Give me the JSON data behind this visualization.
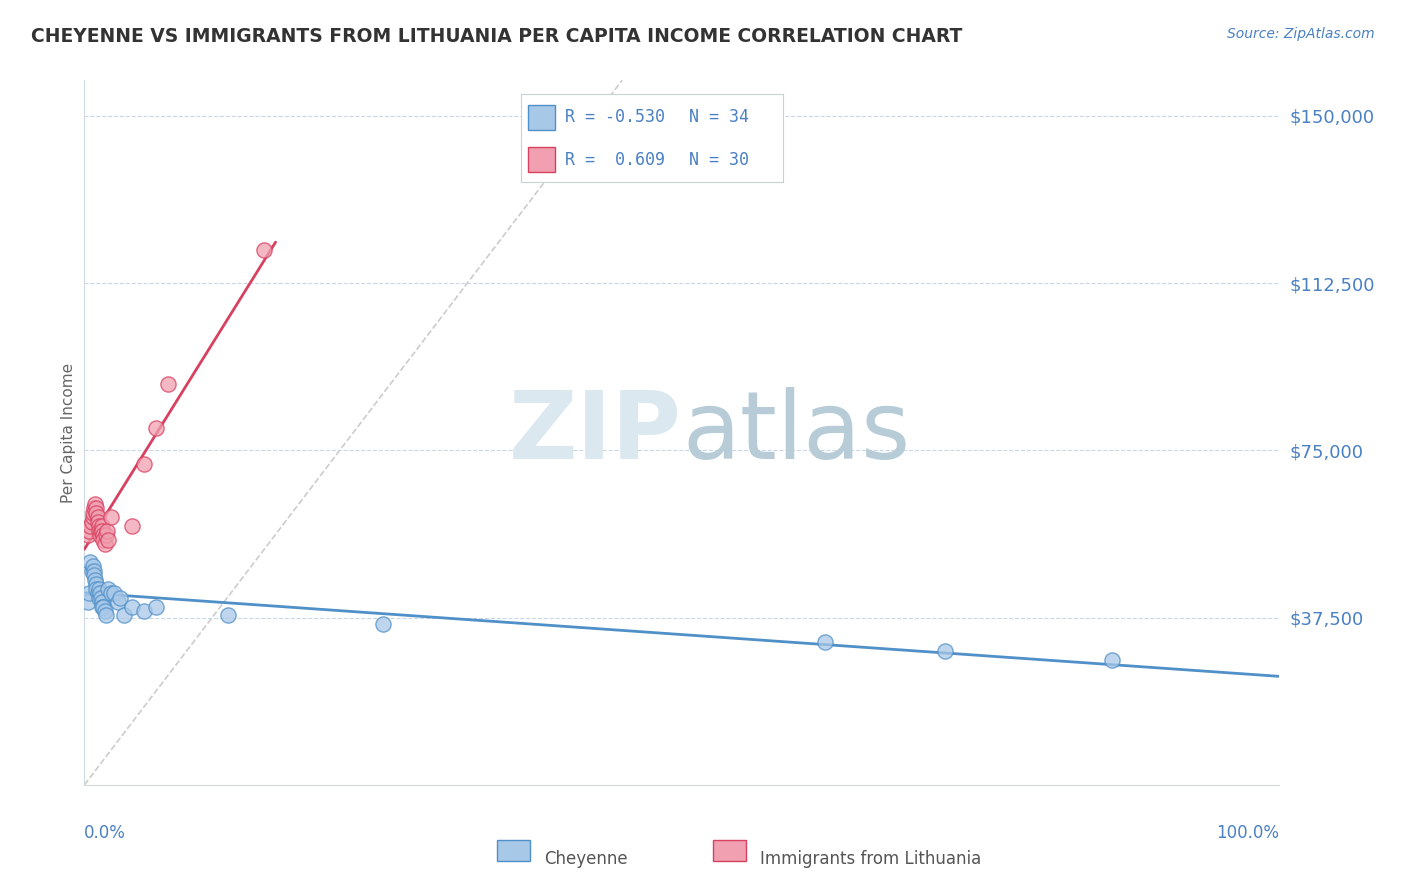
{
  "title": "CHEYENNE VS IMMIGRANTS FROM LITHUANIA PER CAPITA INCOME CORRELATION CHART",
  "source": "Source: ZipAtlas.com",
  "ylabel": "Per Capita Income",
  "yticks": [
    0,
    37500,
    75000,
    112500,
    150000
  ],
  "ytick_labels": [
    "",
    "$37,500",
    "$75,000",
    "$112,500",
    "$150,000"
  ],
  "ymax": 158000,
  "ymin": 0,
  "xmin": 0.0,
  "xmax": 1.0,
  "blue_R": -0.53,
  "blue_N": 34,
  "pink_R": 0.609,
  "pink_N": 30,
  "blue_color": "#a8c8e8",
  "pink_color": "#f0a0b0",
  "blue_line_color": "#5090c8",
  "pink_line_color": "#d84060",
  "grid_color": "#c8d8e8",
  "watermark_color": "#dce8f0",
  "title_color": "#333333",
  "axis_label_color": "#4a80c4",
  "blue_scatter_x": [
    0.003,
    0.004,
    0.005,
    0.006,
    0.007,
    0.008,
    0.008,
    0.009,
    0.01,
    0.01,
    0.011,
    0.012,
    0.012,
    0.013,
    0.014,
    0.015,
    0.015,
    0.016,
    0.017,
    0.018,
    0.02,
    0.022,
    0.025,
    0.028,
    0.03,
    0.033,
    0.04,
    0.05,
    0.06,
    0.12,
    0.25,
    0.62,
    0.72,
    0.86
  ],
  "blue_scatter_y": [
    41000,
    43000,
    50000,
    48000,
    49000,
    48000,
    47000,
    46000,
    45000,
    44000,
    43000,
    44000,
    42000,
    43000,
    42000,
    41000,
    40000,
    40000,
    39000,
    38000,
    44000,
    43000,
    43000,
    41000,
    42000,
    38000,
    40000,
    39000,
    40000,
    38000,
    36000,
    32000,
    30000,
    28000
  ],
  "pink_scatter_x": [
    0.003,
    0.004,
    0.005,
    0.006,
    0.007,
    0.007,
    0.008,
    0.009,
    0.01,
    0.01,
    0.011,
    0.011,
    0.012,
    0.012,
    0.013,
    0.014,
    0.015,
    0.015,
    0.016,
    0.016,
    0.017,
    0.018,
    0.019,
    0.02,
    0.022,
    0.04,
    0.05,
    0.06,
    0.07,
    0.15
  ],
  "pink_scatter_y": [
    56000,
    57000,
    58000,
    59000,
    60000,
    61000,
    62000,
    63000,
    62000,
    61000,
    60000,
    59000,
    58000,
    57000,
    56000,
    57000,
    58000,
    57000,
    56000,
    55000,
    54000,
    56000,
    57000,
    55000,
    60000,
    58000,
    72000,
    80000,
    90000,
    120000
  ],
  "ref_line_x": [
    0.0,
    0.45
  ],
  "ref_line_y": [
    0,
    158000
  ]
}
